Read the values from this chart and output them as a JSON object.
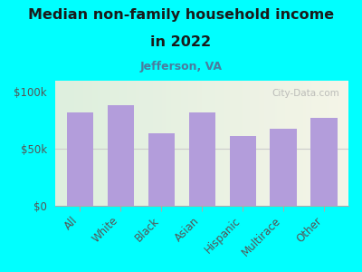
{
  "title_line1": "Median non-family household income",
  "title_line2": "in 2022",
  "subtitle": "Jefferson, VA",
  "categories": [
    "All",
    "White",
    "Black",
    "Asian",
    "Hispanic",
    "Multirace",
    "Other"
  ],
  "values": [
    82000,
    88000,
    63000,
    82000,
    61000,
    67000,
    77000
  ],
  "bar_color": "#b39ddb",
  "background_outer": "#00FFFF",
  "background_inner_left": "#d4edda",
  "background_inner_right": "#f5f5e8",
  "title_color": "#1a1a1a",
  "subtitle_color": "#4a7c9e",
  "axis_label_color": "#555555",
  "yticks": [
    0,
    50000,
    100000
  ],
  "ytick_labels": [
    "$0",
    "$50k",
    "$100k"
  ],
  "ylim": [
    0,
    110000
  ],
  "watermark": "City-Data.com"
}
